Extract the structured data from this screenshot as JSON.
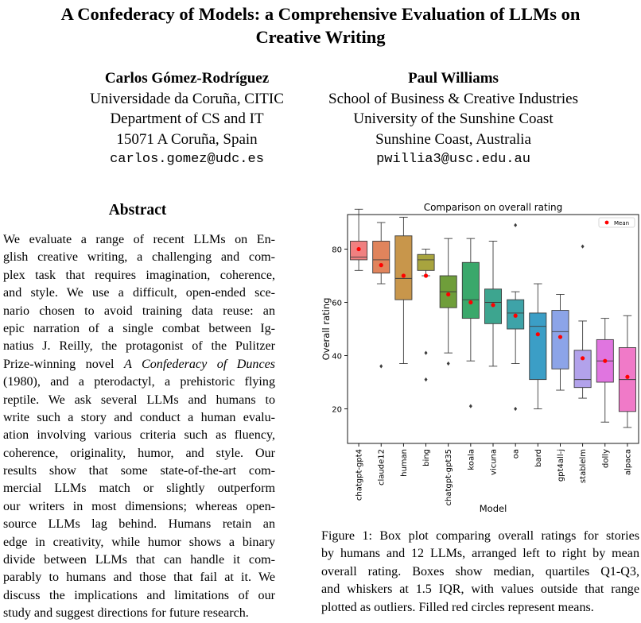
{
  "title_lines": [
    "A Confederacy of Models: a Comprehensive Evaluation of LLMs on",
    "Creative Writing"
  ],
  "authors": [
    {
      "name": "Carlos Gómez-Rodríguez",
      "lines": [
        "Universidade da Coruña, CITIC",
        "Department of CS and IT",
        "15071 A Coruña, Spain"
      ],
      "email": "carlos.gomez@udc.es"
    },
    {
      "name": "Paul Williams",
      "lines": [
        "School of Business & Creative Industries",
        "University of the Sunshine Coast",
        "Sunshine Coast, Australia"
      ],
      "email": "pwillia3@usc.edu.au"
    }
  ],
  "abstract": {
    "heading": "Abstract",
    "lines": [
      "We evaluate a range of recent LLMs on En-",
      "glish creative writing, a challenging and com-",
      "plex task that requires imagination, coherence,",
      "and style. We use a difficult, open-ended sce-",
      "nario chosen to avoid training data reuse: an",
      "epic narration of a single combat between Ig-",
      "natius J. Reilly, the protagonist of the Pulitzer",
      "Prize-winning novel ",
      "(1980), and a pterodactyl, a prehistoric flying",
      "reptile. We ask several LLMs and humans to",
      "write such a story and conduct a human evalu-",
      "ation involving various criteria such as fluency,",
      "coherence, originality, humor, and style. Our",
      "results show that some state-of-the-art com-",
      "mercial LLMs match or slightly outperform",
      "our writers in most dimensions; whereas open-",
      "source LLMs lag behind. Humans retain an",
      "edge in creativity, while humor shows a binary",
      "divide between LLMs that can handle it com-",
      "parably to humans and those that fail at it. We",
      "discuss the implications and limitations of our",
      "study and suggest directions for future research."
    ],
    "italic_title": "A Confederacy of Dunces"
  },
  "caption_lines": [
    "Figure 1: Box plot comparing overall ratings for stories",
    "by humans and 12 LLMs, arranged left to right by mean",
    "overall rating. Boxes show median, quartiles Q1-Q3,",
    "and whiskers at 1.5 IQR, with values outside that range",
    "plotted as outliers. Filled red circles represent means."
  ],
  "chart_data": {
    "type": "box",
    "title": "Comparison on overall rating",
    "xlabel": "Model",
    "ylabel": "Overall rating",
    "ylim": [
      7,
      93
    ],
    "yticks": [
      20,
      40,
      60,
      80
    ],
    "legend": {
      "label": "Mean",
      "position": "top-right"
    },
    "mean_color": "#ff0000",
    "categories": [
      "chatgpt-gpt4",
      "claude12",
      "human",
      "bing",
      "chatgpt-gpt35",
      "koala",
      "vicuna",
      "oa",
      "bard",
      "gpt4all-j",
      "stablelm",
      "dolly",
      "alpaca"
    ],
    "colors": [
      "#f08080",
      "#e0845c",
      "#c8964b",
      "#a8a43e",
      "#6f9e3a",
      "#3aa86b",
      "#3da58f",
      "#3ea3a8",
      "#3b9ec6",
      "#8ca4e8",
      "#b2a2eb",
      "#e075e0",
      "#f07ac8"
    ],
    "boxes": [
      {
        "whislo": 72,
        "q1": 76,
        "med": 77,
        "q3": 83,
        "whishi": 95,
        "mean": 80,
        "fliers": []
      },
      {
        "whislo": 67,
        "q1": 71,
        "med": 76,
        "q3": 83,
        "whishi": 90,
        "mean": 74,
        "fliers": [
          36
        ]
      },
      {
        "whislo": 37,
        "q1": 61,
        "med": 69,
        "q3": 85,
        "whishi": 92,
        "mean": 70,
        "fliers": []
      },
      {
        "whislo": 70,
        "q1": 72,
        "med": 76,
        "q3": 78,
        "whishi": 80,
        "mean": 70,
        "fliers": [
          41,
          31
        ]
      },
      {
        "whislo": 41,
        "q1": 58,
        "med": 64,
        "q3": 70,
        "whishi": 84,
        "mean": 63,
        "fliers": [
          37
        ]
      },
      {
        "whislo": 38,
        "q1": 54,
        "med": 61,
        "q3": 75,
        "whishi": 84,
        "mean": 60,
        "fliers": [
          21
        ]
      },
      {
        "whislo": 36,
        "q1": 52,
        "med": 60,
        "q3": 65,
        "whishi": 83,
        "mean": 59,
        "fliers": []
      },
      {
        "whislo": 37,
        "q1": 50,
        "med": 56,
        "q3": 61,
        "whishi": 64,
        "mean": 55,
        "fliers": [
          89,
          20
        ]
      },
      {
        "whislo": 20,
        "q1": 31,
        "med": 51,
        "q3": 56,
        "whishi": 67,
        "mean": 48,
        "fliers": []
      },
      {
        "whislo": 27,
        "q1": 35,
        "med": 49,
        "q3": 57,
        "whishi": 63,
        "mean": 47,
        "fliers": []
      },
      {
        "whislo": 24,
        "q1": 28,
        "med": 31,
        "q3": 42,
        "whishi": 53,
        "mean": 39,
        "fliers": [
          81
        ]
      },
      {
        "whislo": 15,
        "q1": 30,
        "med": 38,
        "q3": 46,
        "whishi": 54,
        "mean": 38,
        "fliers": []
      },
      {
        "whislo": 13,
        "q1": 19,
        "med": 31,
        "q3": 43,
        "whishi": 55,
        "mean": 32,
        "fliers": []
      }
    ]
  }
}
